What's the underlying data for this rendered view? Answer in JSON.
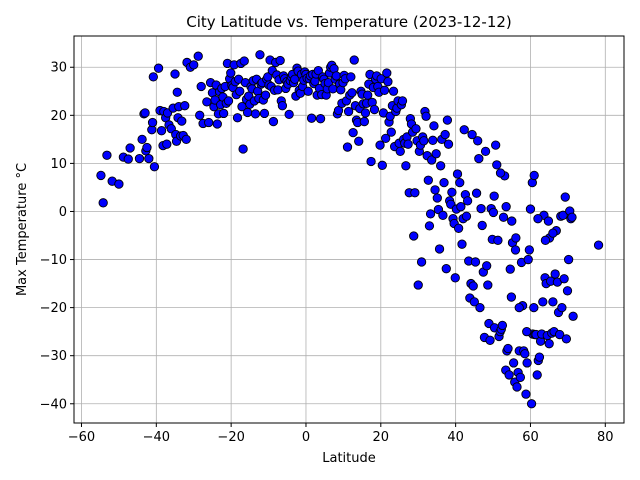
{
  "chart_data": {
    "type": "scatter",
    "title": "City Latitude vs. Temperature (2023-12-12)",
    "xlabel": "Latitude",
    "ylabel": "Max Temperature °C",
    "xlim": [
      -62,
      85
    ],
    "ylim": [
      -44,
      36.5
    ],
    "xticks": [
      -60,
      -40,
      -20,
      0,
      20,
      40,
      60,
      80
    ],
    "yticks": [
      -40,
      -30,
      -20,
      -10,
      0,
      10,
      20,
      30
    ],
    "grid": true,
    "marker_color": "#0000ff",
    "marker_edge": "#000000",
    "points": [
      [
        -54.8,
        7.5
      ],
      [
        -54.2,
        1.8
      ],
      [
        -53.2,
        11.7
      ],
      [
        -51.8,
        6.3
      ],
      [
        -50,
        5.7
      ],
      [
        -48.8,
        11.3
      ],
      [
        -47.5,
        10.9
      ],
      [
        -47,
        13.2
      ],
      [
        -44.5,
        11
      ],
      [
        -43.8,
        15
      ],
      [
        -43.3,
        20.3
      ],
      [
        -43,
        20.5
      ],
      [
        -42.8,
        12.6
      ],
      [
        -42.5,
        13.3
      ],
      [
        -42,
        11
      ],
      [
        -41.2,
        17
      ],
      [
        -41,
        18.5
      ],
      [
        -40.8,
        28
      ],
      [
        -40.5,
        9.3
      ],
      [
        -39.4,
        29.8
      ],
      [
        -39,
        21
      ],
      [
        -38.6,
        16.8
      ],
      [
        -38.2,
        13.7
      ],
      [
        -38,
        20.8
      ],
      [
        -37.5,
        19.5
      ],
      [
        -37.2,
        14
      ],
      [
        -37,
        20.5
      ],
      [
        -36.6,
        18
      ],
      [
        -36,
        17.2
      ],
      [
        -35.5,
        21.5
      ],
      [
        -35,
        28.6
      ],
      [
        -34.8,
        16
      ],
      [
        -34.6,
        14.6
      ],
      [
        -34.4,
        24.8
      ],
      [
        -34.2,
        19.5
      ],
      [
        -34,
        21.8
      ],
      [
        -33.5,
        15.7
      ],
      [
        -33.2,
        18.8
      ],
      [
        -32.8,
        15.8
      ],
      [
        -32.4,
        22
      ],
      [
        -32,
        15
      ],
      [
        -31.8,
        31
      ],
      [
        -30.9,
        30
      ],
      [
        -30,
        30.5
      ],
      [
        -28.8,
        32.3
      ],
      [
        -28.4,
        20
      ],
      [
        -28,
        26
      ],
      [
        -27.5,
        18.3
      ],
      [
        -26.5,
        22.8
      ],
      [
        -26,
        18.5
      ],
      [
        -25.5,
        26.8
      ],
      [
        -25,
        24.7
      ],
      [
        -24.6,
        21.8
      ],
      [
        -24.3,
        23.2
      ],
      [
        -24,
        26.3
      ],
      [
        -23.7,
        18.2
      ],
      [
        -23.4,
        20.3
      ],
      [
        -23.1,
        24.9
      ],
      [
        -22.8,
        22.2
      ],
      [
        -22.5,
        25.6
      ],
      [
        -22.2,
        23.8
      ],
      [
        -22,
        20.4
      ],
      [
        -21.6,
        26
      ],
      [
        -21.3,
        22.5
      ],
      [
        -21,
        30.8
      ],
      [
        -20.7,
        23
      ],
      [
        -20.4,
        27.6
      ],
      [
        -20.1,
        28.8
      ],
      [
        -19.8,
        26.2
      ],
      [
        -19.5,
        25.8
      ],
      [
        -19.2,
        30.5
      ],
      [
        -18.9,
        27
      ],
      [
        -18.6,
        24.3
      ],
      [
        -18.3,
        19.5
      ],
      [
        -18,
        27.5
      ],
      [
        -17.7,
        25
      ],
      [
        -17.4,
        30.8
      ],
      [
        -17.1,
        21.8
      ],
      [
        -16.8,
        13
      ],
      [
        -16.5,
        31.3
      ],
      [
        -16.2,
        26.8
      ],
      [
        -15.9,
        23.3
      ],
      [
        -15.6,
        20.6
      ],
      [
        -15.3,
        24
      ],
      [
        -15,
        22.3
      ],
      [
        -14.7,
        26
      ],
      [
        -14.4,
        25.5
      ],
      [
        -14.1,
        27.2
      ],
      [
        -13.8,
        23
      ],
      [
        -13.5,
        20.3
      ],
      [
        -13.2,
        27.5
      ],
      [
        -12.9,
        25
      ],
      [
        -12.6,
        23.5
      ],
      [
        -12.3,
        32.6
      ],
      [
        -12,
        26.5
      ],
      [
        -11.7,
        26.8
      ],
      [
        -11.4,
        23.2
      ],
      [
        -11.1,
        20.4
      ],
      [
        -10.8,
        24.2
      ],
      [
        -10.5,
        27.5
      ],
      [
        -10.2,
        28
      ],
      [
        -9.9,
        26.3
      ],
      [
        -9.6,
        31.5
      ],
      [
        -9.3,
        26
      ],
      [
        -9,
        29.3
      ],
      [
        -8.7,
        18.7
      ],
      [
        -8.4,
        25.2
      ],
      [
        -8.1,
        31
      ],
      [
        -7.8,
        28.4
      ],
      [
        -7.5,
        25.3
      ],
      [
        -7.2,
        27.4
      ],
      [
        -6.9,
        31.4
      ],
      [
        -6.6,
        23
      ],
      [
        -6.3,
        22
      ],
      [
        -6,
        28.2
      ],
      [
        -5.7,
        27.6
      ],
      [
        -5.4,
        25.6
      ],
      [
        -5.1,
        27
      ],
      [
        -4.8,
        26.5
      ],
      [
        -4.5,
        20.2
      ],
      [
        -4.2,
        27.2
      ],
      [
        -3.9,
        28
      ],
      [
        -3.6,
        28.5
      ],
      [
        -3.3,
        26.8
      ],
      [
        -3,
        27.5
      ],
      [
        -2.7,
        24
      ],
      [
        -2.4,
        29.8
      ],
      [
        -2.1,
        29.2
      ],
      [
        -1.8,
        25.2
      ],
      [
        -1.5,
        24.6
      ],
      [
        -1.2,
        28.5
      ],
      [
        -0.9,
        26
      ],
      [
        -0.6,
        27.3
      ],
      [
        -0.3,
        29
      ],
      [
        0,
        28.5
      ],
      [
        0.3,
        27.7
      ],
      [
        0.6,
        25
      ],
      [
        0.9,
        27.6
      ],
      [
        1.2,
        28.2
      ],
      [
        1.5,
        19.4
      ],
      [
        1.8,
        28.5
      ],
      [
        2.1,
        26.6
      ],
      [
        2.4,
        27.1
      ],
      [
        2.7,
        28.6
      ],
      [
        3,
        24.2
      ],
      [
        3.3,
        29.3
      ],
      [
        3.6,
        25.6
      ],
      [
        3.9,
        19.3
      ],
      [
        4.2,
        24.3
      ],
      [
        4.5,
        28
      ],
      [
        4.8,
        27.5
      ],
      [
        5.1,
        26.6
      ],
      [
        5.4,
        24.2
      ],
      [
        5.7,
        25.5
      ],
      [
        6,
        26.8
      ],
      [
        6.3,
        28.8
      ],
      [
        6.6,
        30
      ],
      [
        6.9,
        30.4
      ],
      [
        7.2,
        25.5
      ],
      [
        7.5,
        29.7
      ],
      [
        7.8,
        27.5
      ],
      [
        8.1,
        28.2
      ],
      [
        8.4,
        20.3
      ],
      [
        8.7,
        21
      ],
      [
        9,
        26.5
      ],
      [
        9.3,
        25.3
      ],
      [
        9.6,
        22.5
      ],
      [
        9.9,
        26.8
      ],
      [
        10.2,
        28.3
      ],
      [
        10.5,
        27.6
      ],
      [
        10.8,
        23
      ],
      [
        11.1,
        13.4
      ],
      [
        11.4,
        20.8
      ],
      [
        11.7,
        24.2
      ],
      [
        12,
        28
      ],
      [
        12.3,
        24.7
      ],
      [
        12.6,
        16.4
      ],
      [
        12.9,
        31.5
      ],
      [
        13.2,
        22
      ],
      [
        13.5,
        19
      ],
      [
        13.8,
        18.5
      ],
      [
        14.1,
        14.6
      ],
      [
        14.4,
        21.4
      ],
      [
        14.7,
        25
      ],
      [
        15,
        24.4
      ],
      [
        15.3,
        22.4
      ],
      [
        15.6,
        18.7
      ],
      [
        15.9,
        20.5
      ],
      [
        16.2,
        22.5
      ],
      [
        16.5,
        24.2
      ],
      [
        16.8,
        26.5
      ],
      [
        17.1,
        28.5
      ],
      [
        17.4,
        10.4
      ],
      [
        17.7,
        22.7
      ],
      [
        18,
        25.8
      ],
      [
        18.3,
        21.2
      ],
      [
        18.6,
        27.5
      ],
      [
        18.9,
        28.2
      ],
      [
        19.2,
        26
      ],
      [
        19.5,
        24.8
      ],
      [
        19.8,
        13.8
      ],
      [
        20.1,
        27.6
      ],
      [
        20.4,
        9.6
      ],
      [
        20.7,
        20.5
      ],
      [
        21,
        25.2
      ],
      [
        21.3,
        15.2
      ],
      [
        21.6,
        28.8
      ],
      [
        21.9,
        27
      ],
      [
        22.2,
        18.6
      ],
      [
        22.5,
        19.8
      ],
      [
        22.8,
        16.5
      ],
      [
        23.1,
        22
      ],
      [
        23.4,
        25
      ],
      [
        23.7,
        13.5
      ],
      [
        24,
        20.8
      ],
      [
        24.3,
        21.5
      ],
      [
        24.6,
        23
      ],
      [
        24.9,
        14.2
      ],
      [
        25.2,
        12.5
      ],
      [
        25.5,
        22.2
      ],
      [
        25.8,
        23
      ],
      [
        26.1,
        15
      ],
      [
        26.4,
        14.2
      ],
      [
        26.7,
        9.5
      ],
      [
        27,
        15.5
      ],
      [
        27.3,
        14
      ],
      [
        27.6,
        3.9
      ],
      [
        27.9,
        19.3
      ],
      [
        28.2,
        18.2
      ],
      [
        28.5,
        16.5
      ],
      [
        28.8,
        -5.1
      ],
      [
        29.1,
        3.9
      ],
      [
        29.4,
        17.2
      ],
      [
        29.7,
        14.7
      ],
      [
        30,
        -15.3
      ],
      [
        30.3,
        12.5
      ],
      [
        30.6,
        13.8
      ],
      [
        30.9,
        -10.5
      ],
      [
        31.2,
        15.5
      ],
      [
        31.5,
        14.7
      ],
      [
        31.8,
        20.8
      ],
      [
        32.1,
        19.8
      ],
      [
        32.4,
        11.6
      ],
      [
        32.7,
        6.5
      ],
      [
        33,
        -3
      ],
      [
        33.3,
        -0.5
      ],
      [
        33.6,
        10.7
      ],
      [
        33.9,
        14.8
      ],
      [
        34.2,
        17.8
      ],
      [
        34.5,
        4.5
      ],
      [
        34.8,
        12
      ],
      [
        35.1,
        2.8
      ],
      [
        35.4,
        0.4
      ],
      [
        35.7,
        -7.8
      ],
      [
        36,
        9.5
      ],
      [
        36.3,
        15
      ],
      [
        36.6,
        -0.8
      ],
      [
        36.9,
        6
      ],
      [
        37.2,
        16
      ],
      [
        37.5,
        -11.9
      ],
      [
        37.8,
        19
      ],
      [
        38.1,
        14
      ],
      [
        38.4,
        2.2
      ],
      [
        38.7,
        1.5
      ],
      [
        39,
        4
      ],
      [
        39.3,
        -1.5
      ],
      [
        39.6,
        -2.5
      ],
      [
        39.9,
        -13.8
      ],
      [
        40.2,
        0.5
      ],
      [
        40.5,
        7.8
      ],
      [
        40.8,
        -3.5
      ],
      [
        41.1,
        6
      ],
      [
        41.4,
        1
      ],
      [
        41.7,
        -6.8
      ],
      [
        42,
        -1.5
      ],
      [
        42.3,
        17
      ],
      [
        42.6,
        3.5
      ],
      [
        42.9,
        -1
      ],
      [
        43.2,
        2.2
      ],
      [
        43.5,
        -10.3
      ],
      [
        43.8,
        -18
      ],
      [
        44.1,
        -15
      ],
      [
        44.4,
        16
      ],
      [
        44.7,
        -15.5
      ],
      [
        45,
        -18.8
      ],
      [
        45.3,
        -10.5
      ],
      [
        45.6,
        3.8
      ],
      [
        45.9,
        14.7
      ],
      [
        46.2,
        11
      ],
      [
        46.5,
        -20
      ],
      [
        46.8,
        0.6
      ],
      [
        47.1,
        -2.9
      ],
      [
        47.4,
        -12.6
      ],
      [
        47.7,
        -26.2
      ],
      [
        48,
        12.5
      ],
      [
        48.3,
        -11.3
      ],
      [
        48.6,
        -15.3
      ],
      [
        48.9,
        -23.3
      ],
      [
        49.2,
        -26.8
      ],
      [
        49.5,
        0.6
      ],
      [
        49.8,
        -5.8
      ],
      [
        50.1,
        -0.2
      ],
      [
        50.4,
        -24.2
      ],
      [
        50.7,
        13.8
      ],
      [
        51,
        9.7
      ],
      [
        51.3,
        -6
      ],
      [
        51.6,
        -26
      ],
      [
        51.9,
        -25
      ],
      [
        52.2,
        -24.5
      ],
      [
        52.5,
        -23.7
      ],
      [
        52.8,
        -1.2
      ],
      [
        53.1,
        7.4
      ],
      [
        53.4,
        -33
      ],
      [
        53.7,
        -29
      ],
      [
        54,
        -28.5
      ],
      [
        54.3,
        -34
      ],
      [
        54.6,
        -12
      ],
      [
        54.9,
        -17.8
      ],
      [
        55.2,
        -6.5
      ],
      [
        55.5,
        -31.5
      ],
      [
        55.8,
        -35.5
      ],
      [
        56.1,
        -5.5
      ],
      [
        56.4,
        -36.5
      ],
      [
        56.7,
        -33.5
      ],
      [
        57,
        -29
      ],
      [
        57.3,
        -34.5
      ],
      [
        57.6,
        -10.6
      ],
      [
        57.9,
        -19.6
      ],
      [
        58.2,
        -29
      ],
      [
        58.5,
        -29.6
      ],
      [
        58.8,
        -38
      ],
      [
        59.1,
        -31.5
      ],
      [
        59.4,
        -10
      ],
      [
        59.7,
        -8
      ],
      [
        60,
        0.5
      ],
      [
        60.3,
        -40
      ],
      [
        60.6,
        -25.5
      ],
      [
        60.9,
        -20
      ],
      [
        61.2,
        -25.6
      ],
      [
        61.5,
        -25.6
      ],
      [
        61.8,
        -34
      ],
      [
        62.1,
        -31
      ],
      [
        62.4,
        -30.3
      ],
      [
        62.7,
        -27
      ],
      [
        63,
        -25.5
      ],
      [
        63.3,
        -18.8
      ],
      [
        63.6,
        -0.8
      ],
      [
        63.9,
        -13.8
      ],
      [
        64.2,
        -15
      ],
      [
        64.5,
        -25.8
      ],
      [
        64.8,
        -2
      ],
      [
        65.1,
        -5.5
      ],
      [
        65.4,
        -14.5
      ],
      [
        65.7,
        -25.3
      ],
      [
        66,
        -18.8
      ],
      [
        66.3,
        -25
      ],
      [
        66.6,
        -13
      ],
      [
        66.9,
        -4
      ],
      [
        67.2,
        -14.7
      ],
      [
        67.5,
        -21
      ],
      [
        67.8,
        -25.6
      ],
      [
        68.1,
        -1
      ],
      [
        68.4,
        -20
      ],
      [
        68.7,
        -0.8
      ],
      [
        69,
        -14
      ],
      [
        69.3,
        3
      ],
      [
        69.6,
        -26.5
      ],
      [
        69.9,
        -16.5
      ],
      [
        70.2,
        -10
      ],
      [
        70.5,
        0.1
      ],
      [
        70.8,
        -1.5
      ],
      [
        71.1,
        -1.2
      ],
      [
        71.4,
        -21.8
      ],
      [
        78.2,
        -7
      ],
      [
        50.3,
        3.2
      ],
      [
        52,
        8
      ],
      [
        53.5,
        1
      ],
      [
        55,
        -2
      ],
      [
        56,
        -8
      ],
      [
        57,
        -20
      ],
      [
        59,
        -25
      ],
      [
        60.5,
        6
      ],
      [
        61,
        7.5
      ],
      [
        62,
        -1.5
      ],
      [
        64,
        -6
      ],
      [
        65,
        -27.5
      ],
      [
        66,
        -4.5
      ]
    ]
  }
}
